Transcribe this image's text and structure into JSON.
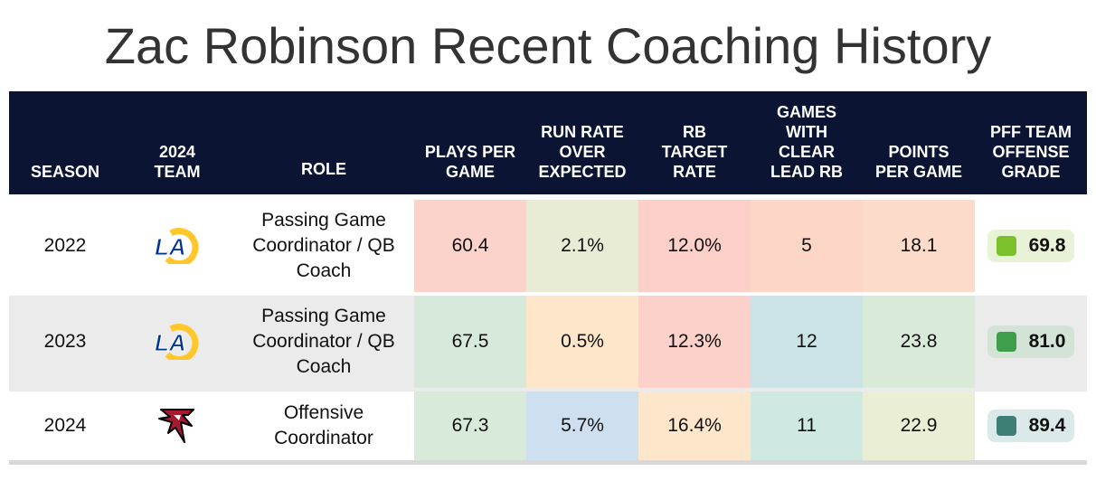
{
  "title": "Zac Robinson Recent Coaching History",
  "columns": {
    "season": "SEASON",
    "team": "2024\nTEAM",
    "role": "ROLE",
    "plays": "PLAYS PER\nGAME",
    "roe": "RUN RATE\nOVER\nEXPECTED",
    "rb_target": "RB\nTARGET\nRATE",
    "games_lead": "GAMES\nWITH\nCLEAR\nLEAD RB",
    "ppg": "POINTS\nPER GAME",
    "pff": "PFF TEAM\nOFFENSE\nGRADE"
  },
  "rows": [
    {
      "season": "2022",
      "team_icon": "rams-logo-icon",
      "role": "Passing Game Coordinator / QB Coach",
      "plays": "60.4",
      "roe": "2.1%",
      "rb_target": "12.0%",
      "games_lead": "5",
      "ppg": "18.1",
      "pff": "69.8",
      "colors": {
        "plays": "#fcd3ca",
        "roe": "#e8ecd5",
        "rb_target": "#fccfc9",
        "games_lead": "#fcd7c7",
        "ppg": "#fcdbcb",
        "pff_box": "#e7f2d6",
        "pff_square": "#7cc12c"
      }
    },
    {
      "season": "2023",
      "team_icon": "rams-logo-icon",
      "role": "Passing Game Coordinator / QB Coach",
      "plays": "67.5",
      "roe": "0.5%",
      "rb_target": "12.3%",
      "games_lead": "12",
      "ppg": "23.8",
      "pff": "81.0",
      "colors": {
        "plays": "#d6e9db",
        "roe": "#fde6c9",
        "rb_target": "#fcd1ca",
        "games_lead": "#cbe2e7",
        "ppg": "#d9ead9",
        "pff_box": "#d3e3d6",
        "pff_square": "#3f9e4c"
      }
    },
    {
      "season": "2024",
      "team_icon": "falcons-logo-icon",
      "role": "Offensive Coordinator",
      "plays": "67.3",
      "roe": "5.7%",
      "rb_target": "16.4%",
      "games_lead": "11",
      "ppg": "22.9",
      "pff": "89.4",
      "colors": {
        "plays": "#d8ead9",
        "roe": "#cee0f0",
        "rb_target": "#fde6c9",
        "games_lead": "#cfe8e1",
        "ppg": "#e9eed4",
        "pff_box": "#dbe9ea",
        "pff_square": "#3d7f74"
      }
    }
  ]
}
